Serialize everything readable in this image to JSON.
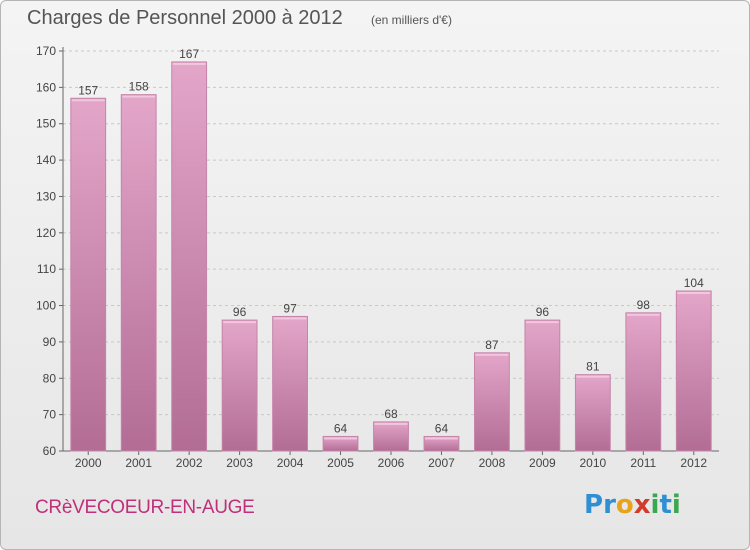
{
  "header": {
    "title": "Charges de Personnel 2000 à 2012",
    "subtitle": "(en milliers d'€)"
  },
  "footer": {
    "town": "CRèVECOEUR-EN-AUGE",
    "logo": "Proxiti",
    "logo_letters": [
      {
        "char": "P",
        "color": "#2f8fd3"
      },
      {
        "char": "r",
        "color": "#2f8fd3"
      },
      {
        "char": "o",
        "color": "#e8a21b"
      },
      {
        "char": "x",
        "color": "#d23a2c"
      },
      {
        "char": "i",
        "color": "#3aa84f"
      },
      {
        "char": "t",
        "color": "#2f8fd3"
      },
      {
        "char": "i",
        "color": "#3aa84f"
      }
    ]
  },
  "colors": {
    "bar": "#d98db6",
    "bar_dark": "#b86c95",
    "title": "#555555",
    "town": "#c0307a"
  },
  "chart_data": {
    "type": "bar",
    "title": "Charges de Personnel 2000 à 2012",
    "subtitle": "(en milliers d'€)",
    "xlabel": "",
    "ylabel": "",
    "categories": [
      "2000",
      "2001",
      "2002",
      "2003",
      "2004",
      "2005",
      "2006",
      "2007",
      "2008",
      "2009",
      "2010",
      "2011",
      "2012"
    ],
    "values": [
      157,
      158,
      167,
      96,
      97,
      64,
      68,
      64,
      87,
      96,
      81,
      98,
      104
    ],
    "ylim": [
      60,
      170
    ],
    "yticks": [
      60,
      70,
      80,
      90,
      100,
      110,
      120,
      130,
      140,
      150,
      160,
      170
    ],
    "grid": true,
    "legend": "none"
  }
}
